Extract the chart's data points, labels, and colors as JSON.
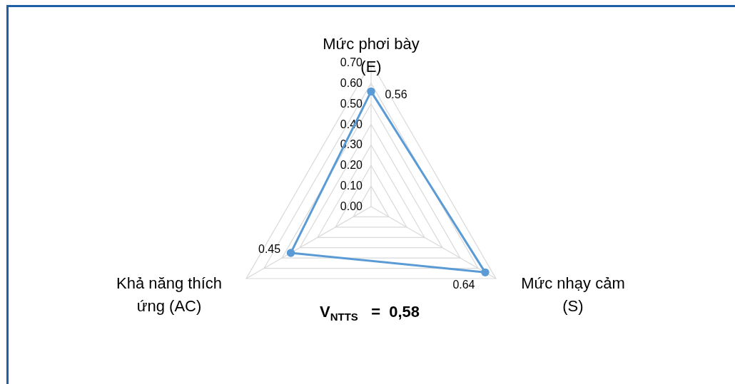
{
  "chart_data": {
    "type": "radar",
    "categories": [
      "Mức phơi bày (E)",
      "Mức nhạy cảm (S)",
      "Khả năng thích ứng (AC)"
    ],
    "series": [
      {
        "color": "#5b9bd5",
        "values": [
          0.56,
          0.64,
          0.45
        ]
      }
    ],
    "ylim": [
      0,
      0.7
    ],
    "yticks": [
      {
        "value": 0,
        "label": "0.00"
      },
      {
        "value": 0.1,
        "label": "0.10"
      },
      {
        "value": 0.2,
        "label": "0.20"
      },
      {
        "value": 0.3,
        "label": "0.30"
      },
      {
        "value": 0.4,
        "label": "0.40"
      },
      {
        "value": 0.5,
        "label": "0.50"
      },
      {
        "value": 0.6,
        "label": "0.60"
      },
      {
        "value": 0.7,
        "label": "0.70"
      }
    ],
    "grid": true,
    "marker": "circle",
    "data_labels": true,
    "annotations": [
      "V$_{NTTS}$   =  0,58"
    ]
  }
}
